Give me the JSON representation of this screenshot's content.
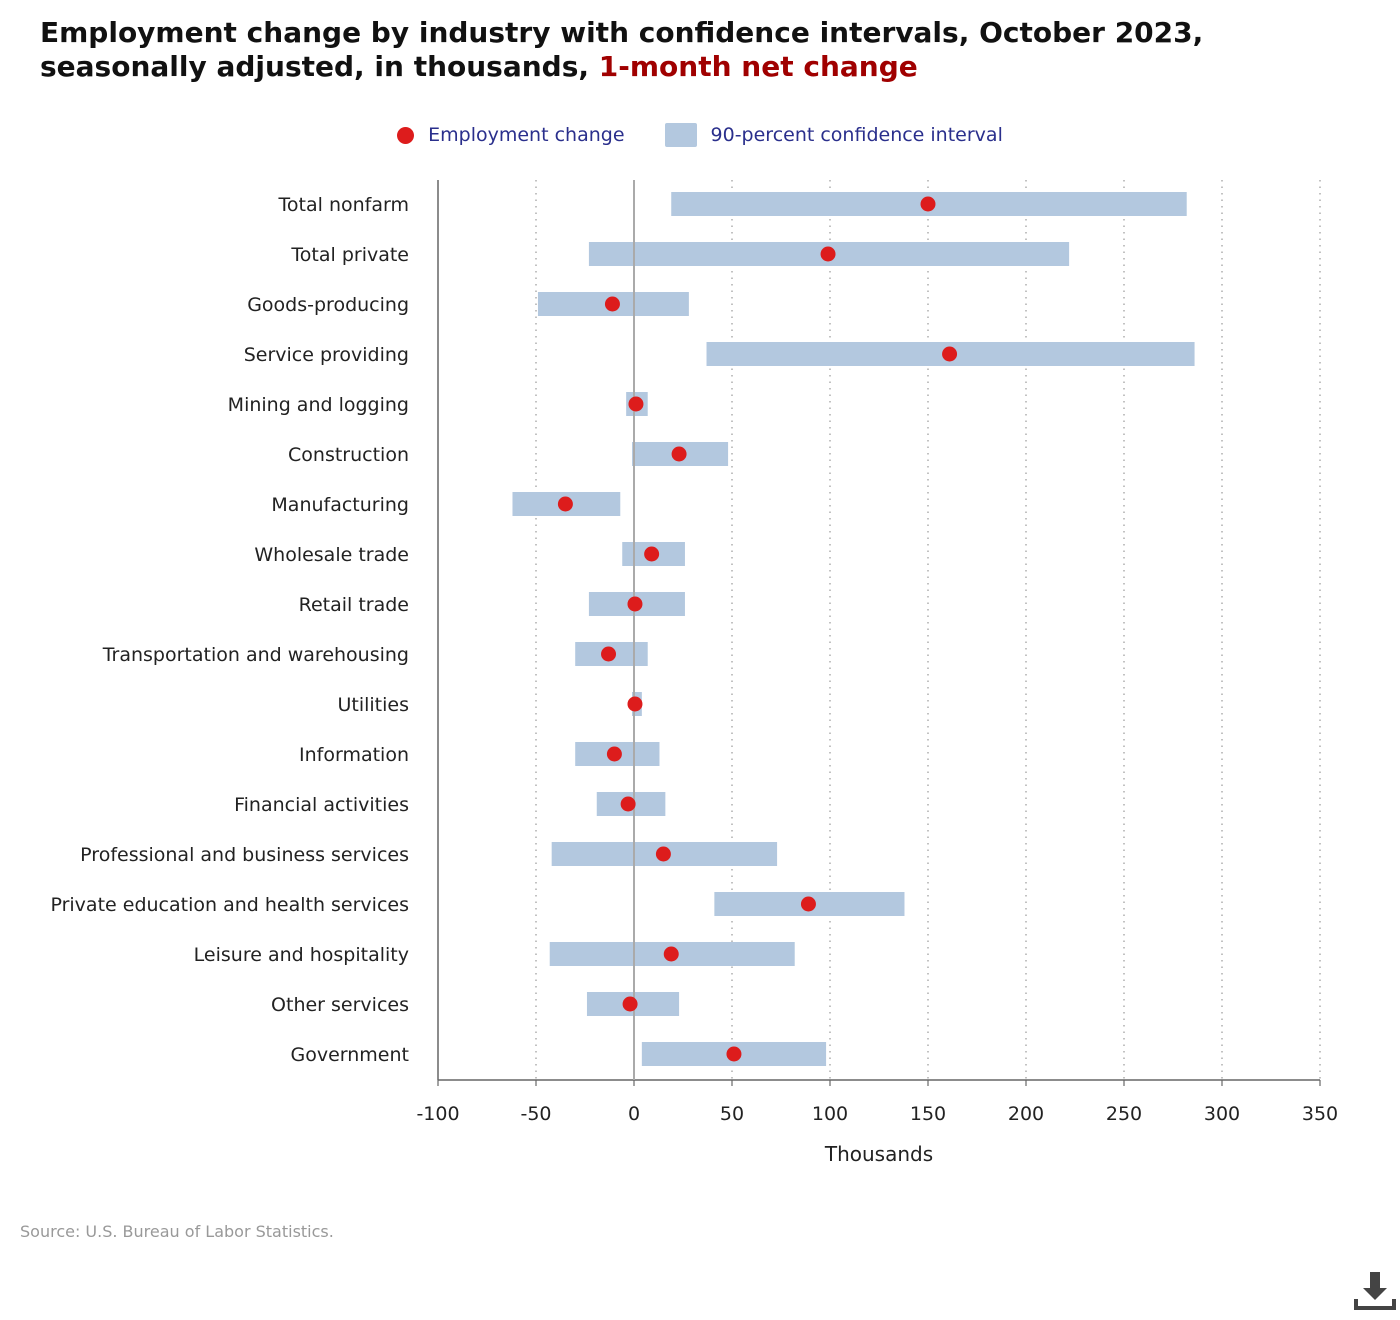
{
  "title": {
    "main": "Employment change by industry with confidence intervals, October 2023, seasonally adjusted, in thousands, ",
    "highlight": "1-month net change"
  },
  "legend": {
    "point_label": "Employment change",
    "interval_label": "90-percent confidence interval"
  },
  "source": "Source: U.S. Bureau of Labor Statistics.",
  "colors": {
    "point": "#dd1c1c",
    "interval": "#b3c8df",
    "title_accent": "#a00000",
    "legend_text": "#2a2f8c",
    "zero_line": "#aaaaaa",
    "grid": "#999999"
  },
  "icons": {
    "download": "download-icon"
  },
  "chart_data": {
    "type": "dot-interval",
    "categories": [
      "Total nonfarm",
      "Total private",
      "Goods-producing",
      "Service providing",
      "Mining and logging",
      "Construction",
      "Manufacturing",
      "Wholesale trade",
      "Retail trade",
      "Transportation and warehousing",
      "Utilities",
      "Information",
      "Financial activities",
      "Professional and business services",
      "Private education and health services",
      "Leisure and hospitality",
      "Other services",
      "Government"
    ],
    "values": [
      150,
      99,
      -11,
      161,
      1,
      23,
      -35,
      9,
      0.5,
      -13,
      0.5,
      -10,
      -3,
      15,
      89,
      19,
      -2,
      51
    ],
    "ci_low": [
      19,
      -23,
      -49,
      37,
      -4,
      -1,
      -62,
      -6,
      -23,
      -30,
      -1,
      -30,
      -19,
      -42,
      41,
      -43,
      -24,
      4
    ],
    "ci_high": [
      282,
      222,
      28,
      286,
      7,
      48,
      -7,
      26,
      26,
      7,
      4,
      13,
      16,
      73,
      138,
      82,
      23,
      98
    ],
    "xlabel": "Thousands",
    "xlim": [
      -100,
      350
    ],
    "xticks": [
      -100,
      -50,
      0,
      50,
      100,
      150,
      200,
      250,
      300,
      350
    ],
    "grid": true,
    "legend_position": "top"
  }
}
